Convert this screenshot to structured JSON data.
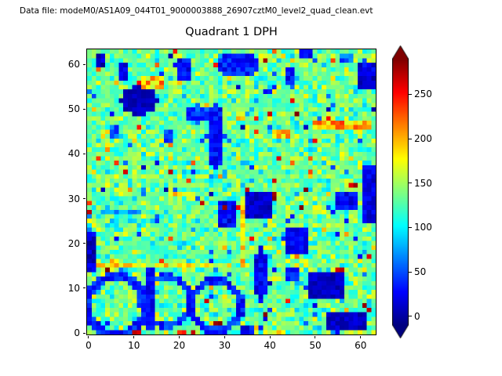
{
  "header": {
    "data_file_label": "Data file: modeM0/AS1A09_044T01_9000003888_26907cztM0_level2_quad_clean.evt"
  },
  "chart_data": {
    "type": "heatmap",
    "title": "Quadrant 1 DPH",
    "grid_size": 64,
    "x_ticks": [
      0,
      10,
      20,
      30,
      40,
      50,
      60
    ],
    "y_ticks": [
      0,
      10,
      20,
      30,
      40,
      50,
      60
    ],
    "xlim": [
      -0.5,
      63.5
    ],
    "ylim": [
      -0.5,
      63.5
    ],
    "value_range": [
      -10,
      290
    ],
    "colorbar_ticks": [
      0,
      50,
      100,
      150,
      200,
      250
    ],
    "colormap": "jet",
    "colorbar_extended": "both",
    "background_mean": 132,
    "noise_sigma": 22,
    "hot_fraction": 0.02,
    "cold_fraction": 0.025,
    "seed": 42,
    "features": [
      {
        "shape": "rect",
        "x": 2,
        "y": 60,
        "w": 2,
        "h": 3,
        "v": 8
      },
      {
        "shape": "rect",
        "x": 7,
        "y": 57,
        "w": 2,
        "h": 4,
        "v": 18
      },
      {
        "shape": "ellipse",
        "cx": 11,
        "cy": 52,
        "rx": 4,
        "ry": 3.2,
        "v": 8,
        "j": 20
      },
      {
        "shape": "rect",
        "x": 20,
        "y": 57,
        "w": 3,
        "h": 5,
        "v": 30
      },
      {
        "shape": "rect",
        "x": 12,
        "y": 55,
        "w": 5,
        "h": 3,
        "v": 195,
        "j": 80
      },
      {
        "shape": "ellipse",
        "cx": 33,
        "cy": 60,
        "rx": 4.5,
        "ry": 2.8,
        "v": 35,
        "j": 40
      },
      {
        "shape": "rect",
        "x": 44,
        "y": 56,
        "w": 2,
        "h": 4,
        "v": 28
      },
      {
        "shape": "rect",
        "x": 47,
        "y": 62,
        "w": 3,
        "h": 2,
        "v": 30
      },
      {
        "shape": "rect",
        "x": 60,
        "y": 55,
        "w": 4,
        "h": 6,
        "v": 18
      },
      {
        "shape": "rect",
        "x": 56,
        "y": 61,
        "w": 3,
        "h": 2,
        "v": 55
      },
      {
        "shape": "ellipse",
        "cx": 28,
        "cy": 44,
        "rx": 2,
        "ry": 7,
        "v": 30,
        "j": 35
      },
      {
        "shape": "ellipse",
        "cx": 24,
        "cy": 49,
        "rx": 2.5,
        "ry": 2,
        "v": 45
      },
      {
        "shape": "rect",
        "x": 17,
        "y": 43,
        "w": 2,
        "h": 3,
        "v": 40
      },
      {
        "shape": "rect",
        "x": 5,
        "y": 44,
        "w": 2,
        "h": 3,
        "v": 55
      },
      {
        "shape": "rect",
        "x": 41,
        "y": 44,
        "w": 4,
        "h": 2,
        "v": 190,
        "j": 70
      },
      {
        "shape": "rect",
        "x": 50,
        "y": 46,
        "w": 13,
        "h": 2,
        "v": 200,
        "j": 80
      },
      {
        "shape": "rect",
        "x": 61,
        "y": 25,
        "w": 3,
        "h": 13,
        "v": 20,
        "j": 30
      },
      {
        "shape": "rect",
        "x": 55,
        "y": 28,
        "w": 5,
        "h": 4,
        "v": 28
      },
      {
        "shape": "rect",
        "x": 58,
        "y": 33,
        "w": 2,
        "h": 1,
        "v": 280
      },
      {
        "shape": "rect",
        "x": 35,
        "y": 26,
        "w": 6,
        "h": 6,
        "v": 12,
        "j": 25
      },
      {
        "shape": "rect",
        "x": 29,
        "y": 24,
        "w": 4,
        "h": 6,
        "v": 25
      },
      {
        "shape": "rect",
        "x": 30,
        "y": 28,
        "w": 1,
        "h": 1,
        "v": 295
      },
      {
        "shape": "rect",
        "x": 47,
        "y": 28,
        "w": 1,
        "h": 1,
        "v": 295
      },
      {
        "shape": "rect",
        "x": 41,
        "y": 30,
        "w": 1,
        "h": 2,
        "v": 275
      },
      {
        "shape": "rect",
        "x": 0,
        "y": 27,
        "w": 1,
        "h": 1,
        "v": 290
      },
      {
        "shape": "rect",
        "x": 18,
        "y": 31,
        "w": 6,
        "h": 1,
        "v": 185,
        "j": 60
      },
      {
        "shape": "rect",
        "x": 34,
        "y": 16,
        "w": 1,
        "h": 15,
        "v": 185,
        "j": 60
      },
      {
        "shape": "rect",
        "x": 2,
        "y": 15,
        "w": 30,
        "h": 1,
        "v": 178,
        "j": 70
      },
      {
        "shape": "rect",
        "x": 3,
        "y": 27,
        "w": 8,
        "h": 1,
        "v": 75,
        "j": 40
      },
      {
        "shape": "rect",
        "x": 44,
        "y": 18,
        "w": 5,
        "h": 6,
        "v": 25,
        "j": 30
      },
      {
        "shape": "ellipse",
        "cx": 38,
        "cy": 13,
        "rx": 1.5,
        "ry": 6,
        "v": 25
      },
      {
        "shape": "ring",
        "cx": 6,
        "cy": 6,
        "r": 6.5,
        "t": 1.7,
        "v": 35,
        "j": 40
      },
      {
        "shape": "ring",
        "cx": 17,
        "cy": 7,
        "r": 5.5,
        "t": 1.6,
        "v": 40,
        "j": 40
      },
      {
        "shape": "rect",
        "x": 13,
        "y": 1,
        "w": 2,
        "h": 14,
        "v": 25,
        "j": 30
      },
      {
        "shape": "ring",
        "cx": 28,
        "cy": 6,
        "r": 5.5,
        "t": 1.7,
        "v": 35,
        "j": 40
      },
      {
        "shape": "rect",
        "x": 0,
        "y": 14,
        "w": 2,
        "h": 9,
        "v": 12
      },
      {
        "shape": "rect",
        "x": 49,
        "y": 8,
        "w": 8,
        "h": 6,
        "v": 10,
        "j": 25
      },
      {
        "shape": "rect",
        "x": 53,
        "y": 1,
        "w": 9,
        "h": 4,
        "v": 10,
        "j": 25
      },
      {
        "shape": "rect",
        "x": 44,
        "y": 12,
        "w": 3,
        "h": 3,
        "v": 30
      },
      {
        "shape": "rect",
        "x": 55,
        "y": 14,
        "w": 2,
        "h": 1,
        "v": 265
      },
      {
        "shape": "rect",
        "x": 10,
        "y": 0,
        "w": 2,
        "h": 1,
        "v": 255
      },
      {
        "shape": "rect",
        "x": 34,
        "y": 0,
        "w": 3,
        "h": 2,
        "v": 25
      },
      {
        "shape": "rect",
        "x": 20,
        "y": 0,
        "w": 2,
        "h": 1,
        "v": 240
      }
    ]
  },
  "colors": {
    "background": "#ffffff",
    "text": "#000000"
  }
}
